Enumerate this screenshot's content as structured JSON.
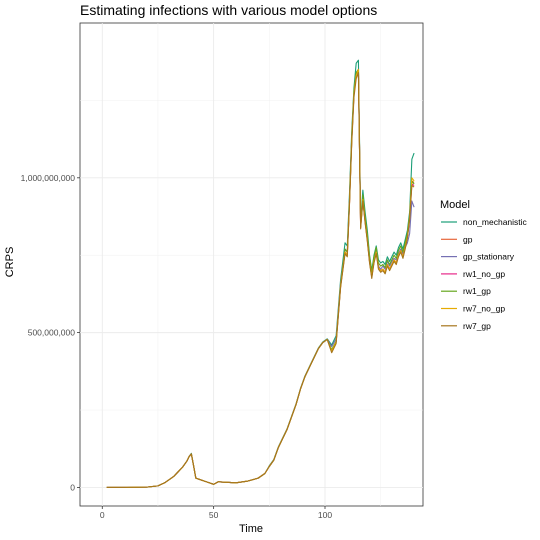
{
  "chart_data": {
    "type": "line",
    "title": "Estimating infections with various model options",
    "xlabel": "Time",
    "ylabel": "CRPS",
    "xlim": [
      -10,
      144
    ],
    "ylim": [
      -60000000,
      1500000000
    ],
    "x_ticks": [
      0,
      50,
      100
    ],
    "x_tick_labels": [
      "0",
      "50",
      "100"
    ],
    "y_ticks": [
      0,
      500000000,
      1000000000
    ],
    "y_tick_labels": [
      "0",
      "500,000,000",
      "1,000,000,000"
    ],
    "grid": true,
    "legend": {
      "title": "Model",
      "position": "right"
    },
    "x": [
      2,
      10,
      20,
      25,
      28,
      30,
      32,
      34,
      36,
      38,
      39,
      40,
      41,
      42,
      44,
      46,
      48,
      50,
      52,
      55,
      60,
      65,
      70,
      73,
      75,
      77,
      79,
      81,
      83,
      85,
      87,
      89,
      91,
      93,
      95,
      97,
      99,
      101,
      103,
      105,
      107,
      109,
      110,
      111,
      112,
      113,
      114,
      115,
      116,
      117,
      118,
      119,
      120,
      121,
      122,
      123,
      124,
      125,
      126,
      127,
      128,
      129,
      130,
      131,
      132,
      133,
      134,
      135,
      136,
      137,
      138,
      139,
      140
    ],
    "series": [
      {
        "name": "non_mechanistic",
        "color": "#1B9E77",
        "values": [
          0,
          0,
          1000000.0,
          5000000.0,
          15000000.0,
          25000000.0,
          35000000.0,
          50000000.0,
          65000000.0,
          85000000.0,
          100000000.0,
          110000000.0,
          70000000.0,
          30000000.0,
          25000000.0,
          20000000.0,
          15000000.0,
          10000000.0,
          18000000.0,
          17000000.0,
          15000000.0,
          20000000.0,
          30000000.0,
          45000000.0,
          70000000.0,
          90000000.0,
          130000000.0,
          160000000.0,
          190000000.0,
          230000000.0,
          270000000.0,
          320000000.0,
          360000000.0,
          390000000.0,
          420000000.0,
          450000000.0,
          470000000.0,
          480000000.0,
          460000000.0,
          490000000.0,
          670000000.0,
          790000000.0,
          780000000.0,
          950000000.0,
          1150000000.0,
          1290000000.0,
          1370000000.0,
          1380000000.0,
          860000000.0,
          960000000.0,
          890000000.0,
          830000000.0,
          750000000.0,
          700000000.0,
          750000000.0,
          780000000.0,
          735000000.0,
          725000000.0,
          730000000.0,
          720000000.0,
          745000000.0,
          730000000.0,
          745000000.0,
          760000000.0,
          750000000.0,
          775000000.0,
          790000000.0,
          770000000.0,
          800000000.0,
          830000000.0,
          890000000.0,
          1060000000.0,
          1080000000.0
        ]
      },
      {
        "name": "gp",
        "color": "#E7663B",
        "values": [
          0,
          0,
          1000000.0,
          5000000.0,
          15000000.0,
          25000000.0,
          35000000.0,
          50000000.0,
          65000000.0,
          85000000.0,
          100000000.0,
          108000000.0,
          70000000.0,
          30000000.0,
          25000000.0,
          20000000.0,
          15000000.0,
          10000000.0,
          18000000.0,
          17000000.0,
          15000000.0,
          20000000.0,
          30000000.0,
          45000000.0,
          68000000.0,
          88000000.0,
          128000000.0,
          158000000.0,
          188000000.0,
          228000000.0,
          268000000.0,
          318000000.0,
          358000000.0,
          388000000.0,
          418000000.0,
          448000000.0,
          468000000.0,
          478000000.0,
          440000000.0,
          470000000.0,
          650000000.0,
          760000000.0,
          750000000.0,
          920000000.0,
          1120000000.0,
          1270000000.0,
          1330000000.0,
          1350000000.0,
          840000000.0,
          930000000.0,
          860000000.0,
          800000000.0,
          730000000.0,
          680000000.0,
          730000000.0,
          760000000.0,
          710000000.0,
          700000000.0,
          705000000.0,
          695000000.0,
          720000000.0,
          705000000.0,
          720000000.0,
          735000000.0,
          725000000.0,
          750000000.0,
          765000000.0,
          745000000.0,
          775000000.0,
          810000000.0,
          870000000.0,
          990000000.0,
          985000000.0
        ]
      },
      {
        "name": "gp_stationary",
        "color": "#7570B3",
        "values": [
          0,
          0,
          1000000.0,
          5000000.0,
          15000000.0,
          25000000.0,
          35000000.0,
          50000000.0,
          65000000.0,
          85000000.0,
          100000000.0,
          108000000.0,
          70000000.0,
          30000000.0,
          25000000.0,
          20000000.0,
          15000000.0,
          10000000.0,
          18000000.0,
          17000000.0,
          15000000.0,
          20000000.0,
          30000000.0,
          45000000.0,
          68000000.0,
          88000000.0,
          128000000.0,
          158000000.0,
          188000000.0,
          228000000.0,
          268000000.0,
          318000000.0,
          358000000.0,
          388000000.0,
          418000000.0,
          448000000.0,
          468000000.0,
          478000000.0,
          455000000.0,
          480000000.0,
          660000000.0,
          770000000.0,
          760000000.0,
          930000000.0,
          1130000000.0,
          1270000000.0,
          1340000000.0,
          1350000000.0,
          845000000.0,
          935000000.0,
          865000000.0,
          805000000.0,
          735000000.0,
          685000000.0,
          735000000.0,
          765000000.0,
          715000000.0,
          705000000.0,
          715000000.0,
          705000000.0,
          730000000.0,
          715000000.0,
          730000000.0,
          740000000.0,
          735000000.0,
          755000000.0,
          770000000.0,
          755000000.0,
          775000000.0,
          790000000.0,
          820000000.0,
          925000000.0,
          905000000.0
        ]
      },
      {
        "name": "rw1_no_gp",
        "color": "#E7298A",
        "values": [
          0,
          0,
          1000000.0,
          5000000.0,
          15000000.0,
          25000000.0,
          35000000.0,
          50000000.0,
          65000000.0,
          85000000.0,
          100000000.0,
          108000000.0,
          70000000.0,
          30000000.0,
          25000000.0,
          20000000.0,
          15000000.0,
          10000000.0,
          18000000.0,
          17000000.0,
          15000000.0,
          20000000.0,
          30000000.0,
          45000000.0,
          68000000.0,
          88000000.0,
          128000000.0,
          158000000.0,
          188000000.0,
          228000000.0,
          268000000.0,
          318000000.0,
          358000000.0,
          388000000.0,
          418000000.0,
          448000000.0,
          468000000.0,
          478000000.0,
          440000000.0,
          470000000.0,
          650000000.0,
          760000000.0,
          750000000.0,
          920000000.0,
          1120000000.0,
          1270000000.0,
          1330000000.0,
          1350000000.0,
          840000000.0,
          930000000.0,
          860000000.0,
          800000000.0,
          730000000.0,
          680000000.0,
          730000000.0,
          760000000.0,
          710000000.0,
          700000000.0,
          705000000.0,
          695000000.0,
          720000000.0,
          705000000.0,
          720000000.0,
          735000000.0,
          725000000.0,
          750000000.0,
          765000000.0,
          745000000.0,
          775000000.0,
          810000000.0,
          870000000.0,
          980000000.0,
          975000000.0
        ]
      },
      {
        "name": "rw1_gp",
        "color": "#66A61E",
        "values": [
          0,
          0,
          1000000.0,
          5000000.0,
          15000000.0,
          25000000.0,
          35000000.0,
          50000000.0,
          65000000.0,
          85000000.0,
          100000000.0,
          108000000.0,
          70000000.0,
          30000000.0,
          25000000.0,
          20000000.0,
          15000000.0,
          10000000.0,
          18000000.0,
          17000000.0,
          15000000.0,
          20000000.0,
          30000000.0,
          45000000.0,
          68000000.0,
          88000000.0,
          128000000.0,
          158000000.0,
          188000000.0,
          228000000.0,
          268000000.0,
          318000000.0,
          358000000.0,
          388000000.0,
          418000000.0,
          448000000.0,
          468000000.0,
          478000000.0,
          445000000.0,
          472000000.0,
          655000000.0,
          770000000.0,
          760000000.0,
          930000000.0,
          1130000000.0,
          1280000000.0,
          1340000000.0,
          1350000000.0,
          850000000.0,
          945000000.0,
          875000000.0,
          815000000.0,
          745000000.0,
          695000000.0,
          745000000.0,
          775000000.0,
          725000000.0,
          715000000.0,
          720000000.0,
          710000000.0,
          735000000.0,
          720000000.0,
          735000000.0,
          750000000.0,
          740000000.0,
          765000000.0,
          780000000.0,
          760000000.0,
          790000000.0,
          820000000.0,
          880000000.0,
          990000000.0,
          980000000.0
        ]
      },
      {
        "name": "rw7_no_gp",
        "color": "#E6AB02",
        "values": [
          0,
          0,
          1000000.0,
          5000000.0,
          15000000.0,
          25000000.0,
          35000000.0,
          50000000.0,
          65000000.0,
          85000000.0,
          100000000.0,
          108000000.0,
          70000000.0,
          30000000.0,
          25000000.0,
          20000000.0,
          15000000.0,
          10000000.0,
          18000000.0,
          17000000.0,
          15000000.0,
          20000000.0,
          30000000.0,
          45000000.0,
          68000000.0,
          88000000.0,
          128000000.0,
          158000000.0,
          188000000.0,
          228000000.0,
          268000000.0,
          318000000.0,
          358000000.0,
          388000000.0,
          418000000.0,
          448000000.0,
          468000000.0,
          478000000.0,
          440000000.0,
          470000000.0,
          650000000.0,
          760000000.0,
          750000000.0,
          920000000.0,
          1120000000.0,
          1270000000.0,
          1330000000.0,
          1350000000.0,
          840000000.0,
          930000000.0,
          860000000.0,
          800000000.0,
          730000000.0,
          680000000.0,
          730000000.0,
          760000000.0,
          710000000.0,
          700000000.0,
          705000000.0,
          695000000.0,
          720000000.0,
          705000000.0,
          720000000.0,
          735000000.0,
          725000000.0,
          750000000.0,
          765000000.0,
          745000000.0,
          775000000.0,
          810000000.0,
          870000000.0,
          1000000000.0,
          990000000.0
        ]
      },
      {
        "name": "rw7_gp",
        "color": "#A6761D",
        "values": [
          0,
          0,
          1000000.0,
          5000000.0,
          15000000.0,
          25000000.0,
          35000000.0,
          50000000.0,
          65000000.0,
          85000000.0,
          100000000.0,
          108000000.0,
          70000000.0,
          30000000.0,
          25000000.0,
          20000000.0,
          15000000.0,
          10000000.0,
          18000000.0,
          17000000.0,
          15000000.0,
          20000000.0,
          30000000.0,
          45000000.0,
          68000000.0,
          88000000.0,
          128000000.0,
          158000000.0,
          188000000.0,
          228000000.0,
          268000000.0,
          318000000.0,
          358000000.0,
          388000000.0,
          418000000.0,
          448000000.0,
          468000000.0,
          478000000.0,
          435000000.0,
          465000000.0,
          645000000.0,
          755000000.0,
          745000000.0,
          915000000.0,
          1110000000.0,
          1260000000.0,
          1320000000.0,
          1340000000.0,
          835000000.0,
          925000000.0,
          855000000.0,
          795000000.0,
          725000000.0,
          675000000.0,
          725000000.0,
          755000000.0,
          705000000.0,
          695000000.0,
          700000000.0,
          690000000.0,
          715000000.0,
          700000000.0,
          715000000.0,
          730000000.0,
          720000000.0,
          745000000.0,
          760000000.0,
          740000000.0,
          770000000.0,
          805000000.0,
          865000000.0,
          975000000.0,
          970000000.0
        ]
      }
    ]
  }
}
